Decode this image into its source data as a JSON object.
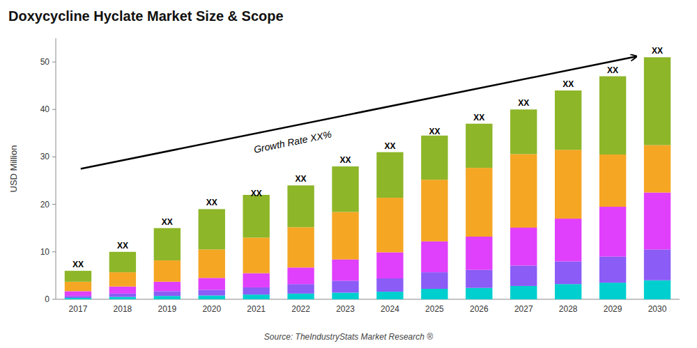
{
  "chart_data": {
    "type": "bar",
    "stacked": true,
    "title": "Doxycycline Hyclate Market Size & Scope",
    "ylabel": "USD Million",
    "source": "Source: TheIndustryStats Market Research ®",
    "annotation": "Growth Rate XX%",
    "categories": [
      "2017",
      "2018",
      "2019",
      "2020",
      "2021",
      "2022",
      "2023",
      "2024",
      "2025",
      "2026",
      "2027",
      "2028",
      "2029",
      "2030"
    ],
    "series": [
      {
        "color": "#00cfcf",
        "values": [
          0.3,
          0.5,
          0.7,
          0.8,
          1.0,
          1.2,
          1.4,
          1.6,
          2.2,
          2.4,
          2.8,
          3.2,
          3.5,
          4.0
        ]
      },
      {
        "color": "#8b5cf6",
        "values": [
          0.4,
          0.7,
          1.0,
          1.2,
          1.5,
          2.0,
          2.5,
          2.8,
          3.5,
          3.8,
          4.3,
          4.8,
          5.5,
          6.5
        ]
      },
      {
        "color": "#e040fb",
        "values": [
          1.0,
          1.5,
          2.0,
          2.5,
          3.0,
          3.5,
          4.5,
          5.5,
          6.5,
          7.0,
          8.0,
          9.0,
          10.5,
          12.0
        ]
      },
      {
        "color": "#f5a623",
        "values": [
          2.0,
          3.0,
          4.5,
          6.0,
          7.5,
          8.5,
          10.0,
          11.5,
          13.0,
          14.5,
          15.5,
          14.5,
          11.0,
          10.0
        ]
      },
      {
        "color": "#8db628",
        "values": [
          2.3,
          4.3,
          6.8,
          8.5,
          9.0,
          8.8,
          9.6,
          9.6,
          9.3,
          9.3,
          9.4,
          12.5,
          16.5,
          18.5
        ]
      }
    ],
    "totals": [
      6,
      10,
      15,
      19,
      21,
      24,
      28,
      31,
      34,
      37,
      40,
      44,
      47,
      51
    ],
    "total_labels": [
      "XX",
      "XX",
      "XX",
      "XX",
      "XX",
      "XX",
      "XX",
      "XX",
      "XX",
      "XX",
      "XX",
      "XX",
      "XX",
      "XX"
    ],
    "ylim": [
      0,
      55
    ],
    "yticks": [
      0,
      10,
      20,
      30,
      40,
      50
    ],
    "grid": false
  }
}
